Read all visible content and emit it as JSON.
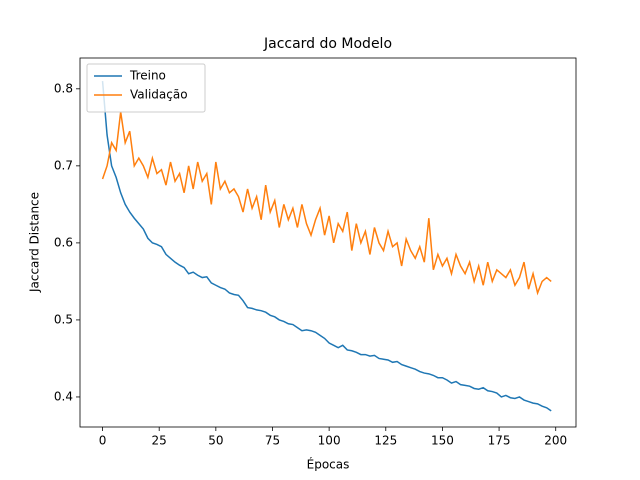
{
  "chart_data": {
    "type": "line",
    "title": "Jaccard do Modelo",
    "x_label": "Épocas",
    "y_label": "Jaccard Distance",
    "x": [
      0,
      2,
      4,
      6,
      8,
      10,
      12,
      14,
      16,
      18,
      20,
      22,
      24,
      26,
      28,
      30,
      32,
      34,
      36,
      38,
      40,
      42,
      44,
      46,
      48,
      50,
      52,
      54,
      56,
      58,
      60,
      62,
      64,
      66,
      68,
      70,
      72,
      74,
      76,
      78,
      80,
      82,
      84,
      86,
      88,
      90,
      92,
      94,
      96,
      98,
      100,
      102,
      104,
      106,
      108,
      110,
      112,
      114,
      116,
      118,
      120,
      122,
      124,
      126,
      128,
      130,
      132,
      134,
      136,
      138,
      140,
      142,
      144,
      146,
      148,
      150,
      152,
      154,
      156,
      158,
      160,
      162,
      164,
      166,
      168,
      170,
      172,
      174,
      176,
      178,
      180,
      182,
      184,
      186,
      188,
      190,
      192,
      194,
      196,
      198
    ],
    "series": [
      {
        "name": "Treino",
        "color": "#1f77b4",
        "values": [
          0.81,
          0.74,
          0.7,
          0.685,
          0.665,
          0.65,
          0.64,
          0.632,
          0.625,
          0.618,
          0.606,
          0.6,
          0.598,
          0.595,
          0.585,
          0.58,
          0.575,
          0.571,
          0.568,
          0.56,
          0.562,
          0.558,
          0.555,
          0.556,
          0.548,
          0.545,
          0.542,
          0.54,
          0.535,
          0.533,
          0.532,
          0.525,
          0.516,
          0.515,
          0.513,
          0.512,
          0.51,
          0.506,
          0.504,
          0.5,
          0.498,
          0.495,
          0.494,
          0.49,
          0.486,
          0.487,
          0.486,
          0.484,
          0.48,
          0.476,
          0.47,
          0.467,
          0.464,
          0.467,
          0.461,
          0.46,
          0.458,
          0.455,
          0.455,
          0.453,
          0.454,
          0.45,
          0.449,
          0.448,
          0.445,
          0.446,
          0.442,
          0.44,
          0.438,
          0.436,
          0.433,
          0.431,
          0.43,
          0.428,
          0.425,
          0.425,
          0.422,
          0.418,
          0.42,
          0.416,
          0.415,
          0.414,
          0.411,
          0.41,
          0.412,
          0.408,
          0.407,
          0.405,
          0.4,
          0.402,
          0.399,
          0.398,
          0.4,
          0.396,
          0.394,
          0.392,
          0.391,
          0.388,
          0.386,
          0.382
        ]
      },
      {
        "name": "Validação",
        "color": "#ff7f0e",
        "values": [
          0.683,
          0.7,
          0.73,
          0.72,
          0.77,
          0.73,
          0.745,
          0.7,
          0.71,
          0.7,
          0.685,
          0.71,
          0.69,
          0.695,
          0.675,
          0.705,
          0.68,
          0.69,
          0.665,
          0.7,
          0.67,
          0.705,
          0.68,
          0.69,
          0.65,
          0.705,
          0.67,
          0.68,
          0.665,
          0.67,
          0.66,
          0.64,
          0.67,
          0.645,
          0.66,
          0.63,
          0.675,
          0.64,
          0.655,
          0.62,
          0.65,
          0.63,
          0.645,
          0.62,
          0.65,
          0.625,
          0.61,
          0.63,
          0.645,
          0.61,
          0.635,
          0.6,
          0.625,
          0.615,
          0.64,
          0.59,
          0.625,
          0.6,
          0.615,
          0.585,
          0.62,
          0.6,
          0.59,
          0.615,
          0.595,
          0.6,
          0.57,
          0.605,
          0.59,
          0.58,
          0.595,
          0.575,
          0.632,
          0.565,
          0.585,
          0.57,
          0.58,
          0.56,
          0.585,
          0.57,
          0.56,
          0.575,
          0.55,
          0.57,
          0.545,
          0.575,
          0.55,
          0.565,
          0.56,
          0.555,
          0.565,
          0.545,
          0.555,
          0.575,
          0.54,
          0.56,
          0.535,
          0.55,
          0.555,
          0.55
        ]
      }
    ],
    "xlim": [
      -9.95,
      208.95
    ],
    "ylim": [
      0.361,
      0.84
    ],
    "xticks": [
      0,
      25,
      50,
      75,
      100,
      125,
      150,
      175,
      200
    ],
    "yticks": [
      0.4,
      0.5,
      0.6,
      0.7,
      0.8
    ],
    "legend": "upper left",
    "grid": false
  }
}
